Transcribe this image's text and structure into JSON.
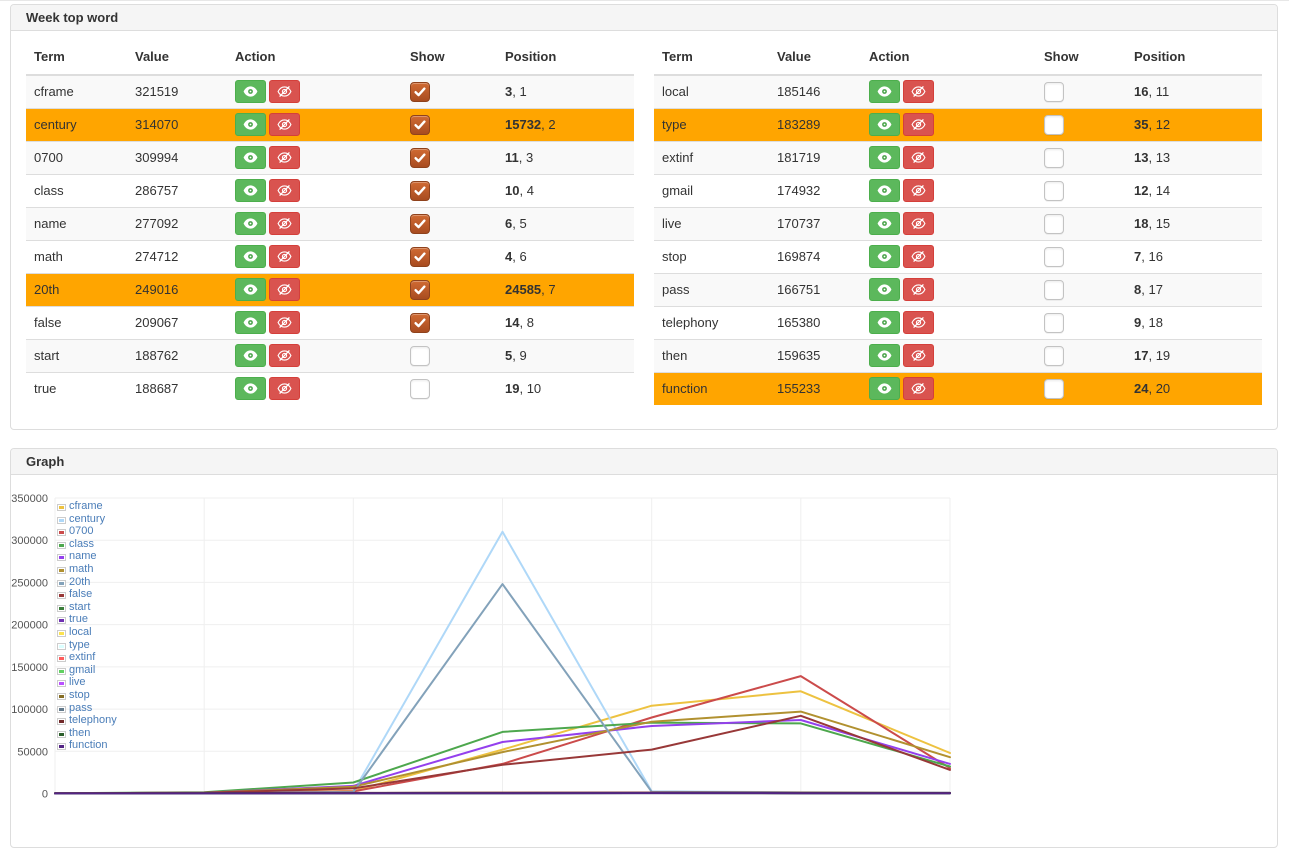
{
  "panels": {
    "words": {
      "title": "Week top word",
      "headers": [
        "Term",
        "Value",
        "Action",
        "Show",
        "Position"
      ],
      "action_buttons": {
        "show_label": "show-eye",
        "hide_label": "hide-eye"
      },
      "left_rows": [
        {
          "term": "cframe",
          "value": "321519",
          "pos_main": "3",
          "pos_rank": "1",
          "checked": true,
          "highlighted": false
        },
        {
          "term": "century",
          "value": "314070",
          "pos_main": "15732",
          "pos_rank": "2",
          "checked": true,
          "highlighted": true
        },
        {
          "term": "0700",
          "value": "309994",
          "pos_main": "11",
          "pos_rank": "3",
          "checked": true,
          "highlighted": false
        },
        {
          "term": "class",
          "value": "286757",
          "pos_main": "10",
          "pos_rank": "4",
          "checked": true,
          "highlighted": false
        },
        {
          "term": "name",
          "value": "277092",
          "pos_main": "6",
          "pos_rank": "5",
          "checked": true,
          "highlighted": false
        },
        {
          "term": "math",
          "value": "274712",
          "pos_main": "4",
          "pos_rank": "6",
          "checked": true,
          "highlighted": false
        },
        {
          "term": "20th",
          "value": "249016",
          "pos_main": "24585",
          "pos_rank": "7",
          "checked": true,
          "highlighted": true
        },
        {
          "term": "false",
          "value": "209067",
          "pos_main": "14",
          "pos_rank": "8",
          "checked": true,
          "highlighted": false
        },
        {
          "term": "start",
          "value": "188762",
          "pos_main": "5",
          "pos_rank": "9",
          "checked": false,
          "highlighted": false
        },
        {
          "term": "true",
          "value": "188687",
          "pos_main": "19",
          "pos_rank": "10",
          "checked": false,
          "highlighted": false
        }
      ],
      "right_rows": [
        {
          "term": "local",
          "value": "185146",
          "pos_main": "16",
          "pos_rank": "11",
          "checked": false,
          "highlighted": false
        },
        {
          "term": "type",
          "value": "183289",
          "pos_main": "35",
          "pos_rank": "12",
          "checked": false,
          "highlighted": true
        },
        {
          "term": "extinf",
          "value": "181719",
          "pos_main": "13",
          "pos_rank": "13",
          "checked": false,
          "highlighted": false
        },
        {
          "term": "gmail",
          "value": "174932",
          "pos_main": "12",
          "pos_rank": "14",
          "checked": false,
          "highlighted": false
        },
        {
          "term": "live",
          "value": "170737",
          "pos_main": "18",
          "pos_rank": "15",
          "checked": false,
          "highlighted": false
        },
        {
          "term": "stop",
          "value": "169874",
          "pos_main": "7",
          "pos_rank": "16",
          "checked": false,
          "highlighted": false
        },
        {
          "term": "pass",
          "value": "166751",
          "pos_main": "8",
          "pos_rank": "17",
          "checked": false,
          "highlighted": false
        },
        {
          "term": "telephony",
          "value": "165380",
          "pos_main": "9",
          "pos_rank": "18",
          "checked": false,
          "highlighted": false
        },
        {
          "term": "then",
          "value": "159635",
          "pos_main": "17",
          "pos_rank": "19",
          "checked": false,
          "highlighted": false
        },
        {
          "term": "function",
          "value": "155233",
          "pos_main": "24",
          "pos_rank": "20",
          "checked": false,
          "highlighted": true
        }
      ]
    },
    "graph": {
      "title": "Graph"
    }
  },
  "ui_colors": {
    "highlight_row": "#ffa500",
    "stripe_row": "#f9f9f9",
    "show_button": "#5cb85c",
    "hide_button": "#d9534f",
    "checkbox_checked": "#b85527",
    "panel_border": "#dddddd",
    "panel_heading_bg": "#f5f5f5",
    "legend_text": "#4a7db8",
    "axis_label": "#545454",
    "grid_line": "#efefef"
  },
  "chart_data": {
    "type": "line",
    "x": [
      1,
      2,
      3,
      4,
      5,
      6,
      7
    ],
    "x_tick_labels_visible": false,
    "title": "",
    "xlabel": "",
    "ylabel": "",
    "ylim": [
      0,
      350000
    ],
    "yticks": [
      0,
      50000,
      100000,
      150000,
      200000,
      250000,
      300000,
      350000
    ],
    "grid": true,
    "legend_position": "top-left",
    "series": [
      {
        "name": "cframe",
        "color": "#edc240",
        "values": [
          500,
          800,
          3000,
          52000,
          104000,
          121000,
          48000
        ]
      },
      {
        "name": "century",
        "color": "#afd8f8",
        "values": [
          300,
          600,
          2000,
          310000,
          2500,
          1500,
          1000
        ]
      },
      {
        "name": "0700",
        "color": "#cb4b4b",
        "values": [
          300,
          700,
          2500,
          35000,
          90000,
          139000,
          30000
        ]
      },
      {
        "name": "class",
        "color": "#4da74d",
        "values": [
          400,
          1500,
          13000,
          73000,
          84000,
          83000,
          32000
        ]
      },
      {
        "name": "name",
        "color": "#9440ed",
        "values": [
          300,
          1000,
          9000,
          61000,
          80000,
          87000,
          35000
        ]
      },
      {
        "name": "math",
        "color": "#b19130",
        "values": [
          300,
          900,
          8000,
          49000,
          85000,
          97000,
          43000
        ]
      },
      {
        "name": "20th",
        "color": "#83a2ba",
        "values": [
          300,
          600,
          1800,
          248000,
          2000,
          1200,
          700
        ]
      },
      {
        "name": "false",
        "color": "#983838",
        "values": [
          300,
          800,
          6000,
          34000,
          52000,
          92000,
          28000
        ]
      },
      {
        "name": "start",
        "color": "#3a7d3a",
        "values": [
          200,
          300,
          500,
          800,
          900,
          700,
          500
        ]
      },
      {
        "name": "true",
        "color": "#6f30b2",
        "values": [
          200,
          300,
          500,
          800,
          900,
          700,
          500
        ]
      },
      {
        "name": "local",
        "color": "#fbe250",
        "values": [
          200,
          300,
          600,
          900,
          1000,
          800,
          600
        ]
      },
      {
        "name": "type",
        "color": "#dbffff",
        "values": [
          100,
          200,
          400,
          700,
          800,
          600,
          400
        ]
      },
      {
        "name": "extinf",
        "color": "#fe5d5d",
        "values": [
          100,
          200,
          400,
          700,
          800,
          600,
          400
        ]
      },
      {
        "name": "gmail",
        "color": "#60d060",
        "values": [
          100,
          200,
          400,
          600,
          700,
          500,
          300
        ]
      },
      {
        "name": "live",
        "color": "#b950ff",
        "values": [
          100,
          200,
          400,
          600,
          700,
          500,
          300
        ]
      },
      {
        "name": "stop",
        "color": "#856d24",
        "values": [
          100,
          200,
          300,
          500,
          600,
          400,
          300
        ]
      },
      {
        "name": "pass",
        "color": "#62798b",
        "values": [
          100,
          200,
          300,
          500,
          600,
          400,
          300
        ]
      },
      {
        "name": "telephony",
        "color": "#722a2a",
        "values": [
          400,
          500,
          700,
          1000,
          1100,
          900,
          700
        ]
      },
      {
        "name": "then",
        "color": "#2b5e2b",
        "values": [
          100,
          100,
          300,
          400,
          500,
          300,
          200
        ]
      },
      {
        "name": "function",
        "color": "#532485",
        "values": [
          100,
          100,
          200,
          400,
          500,
          300,
          200
        ]
      }
    ]
  }
}
